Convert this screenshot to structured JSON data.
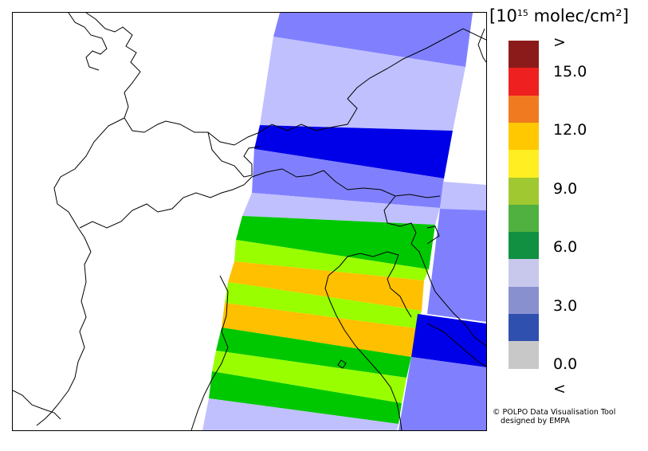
{
  "legend": {
    "unit_base": "[10",
    "unit_exp": "15",
    "unit_rest": " molec/cm²]",
    "colors": [
      "#8b1a1a",
      "#ee2020",
      "#f07a20",
      "#ffc800",
      "#ffee22",
      "#a0c830",
      "#50b040",
      "#109040",
      "#c8c8ec",
      "#8890d0",
      "#3050b0",
      "#c8c8c8"
    ],
    "tick_labels": [
      ">",
      "15.0",
      "12.0",
      "9.0",
      "6.0",
      "3.0",
      "0.0",
      "<"
    ]
  },
  "credit": {
    "line1": "© POLPO Data Visualisation Tool",
    "line2": "designed by EMPA"
  },
  "swath_colors": {
    "pale_blue": "#c0c0ff",
    "mid_blue": "#8080ff",
    "deep_blue": "#0000e8",
    "green": "#00c800",
    "lime": "#99ff00",
    "orange": "#ffc000"
  }
}
